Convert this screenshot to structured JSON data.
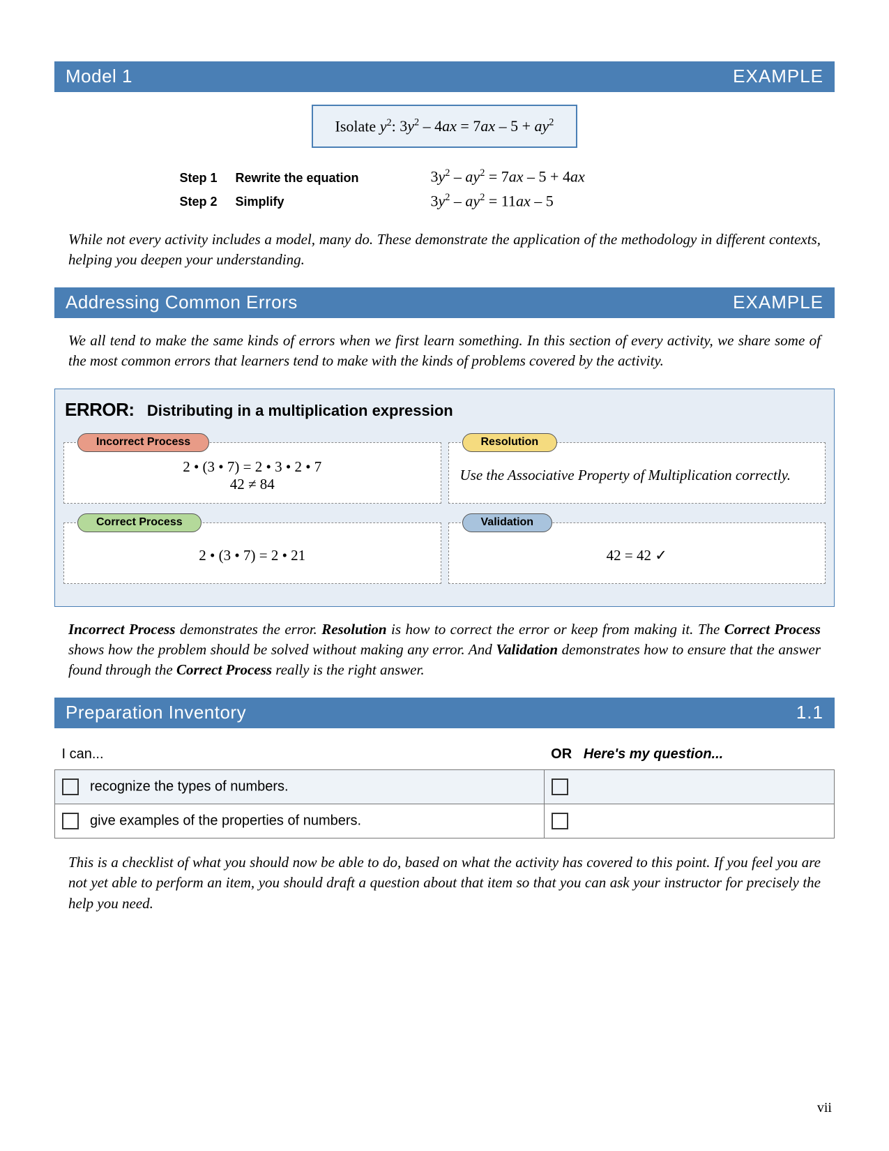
{
  "colors": {
    "bar_bg": "#4a7fb5",
    "panel_bg": "#e6edf5",
    "box_bg": "#eaf1f8",
    "pill_red": "#e89b87",
    "pill_yellow": "#f5db7f",
    "pill_green": "#b4d99a",
    "pill_blue": "#a8c3dd"
  },
  "sections": {
    "model": {
      "title": "Model 1",
      "tag": "EXAMPLE"
    },
    "errors": {
      "title": "Addressing Common Errors",
      "tag": "EXAMPLE"
    },
    "prep": {
      "title": "Preparation Inventory",
      "tag": "1.1"
    }
  },
  "model": {
    "equation_prefix": "Isolate ",
    "equation_var": "y²",
    "equation_sep": ": ",
    "equation_body": "3y² – 4ax = 7ax – 5 + ay²",
    "steps": [
      {
        "num": "Step 1",
        "desc": "Rewrite the equation",
        "math": "3y² – ay² = 7ax – 5 + 4ax"
      },
      {
        "num": "Step 2",
        "desc": "Simplify",
        "math": "3y² – ay² = 11ax – 5"
      }
    ],
    "caption": "While not every activity includes a model, many do. These demonstrate the application of the methodology in different contexts, helping you deepen your understanding."
  },
  "errors": {
    "intro": "We all tend to make the same kinds of errors when we first learn something. In this section of every activity, we share some of the most common errors that learners tend to make with the kinds of problems covered by the activity.",
    "label": "ERROR:",
    "title": "Distributing in a multiplication expression",
    "cells": {
      "incorrect": {
        "pill": "Incorrect Process",
        "line1": "2 • (3 • 7) = 2 • 3 • 2 • 7",
        "line2": "42 ≠ 84"
      },
      "resolution": {
        "pill": "Resolution",
        "text": "Use the Associative Property of Multiplication correctly."
      },
      "correct": {
        "pill": "Correct Process",
        "line1": "2 • (3 • 7) = 2 • 21"
      },
      "validation": {
        "pill": "Validation",
        "line1": "42 = 42 ✓"
      }
    },
    "caption_parts": {
      "p1": "Incorrect Process",
      "p2": " demonstrates the error. ",
      "p3": "Resolution",
      "p4": " is how to correct the error or keep from making it. The ",
      "p5": "Correct Process",
      "p6": " shows how the problem should be solved without making any error. And ",
      "p7": "Validation",
      "p8": " demonstrates how to ensure that the answer found through the ",
      "p9": "Correct Process",
      "p10": " really is the right answer."
    }
  },
  "prep": {
    "left_header": "I can...",
    "right_or": "OR",
    "right_q": "Here's my question...",
    "rows": [
      "recognize the types of numbers.",
      "give examples of the properties of numbers."
    ],
    "caption": "This is a checklist of what you should now be able to do, based on what the activity has covered to this point. If you feel you are not yet able to perform an item, you should draft a question about that item so that you can ask your instructor for precisely the help you need."
  },
  "page_number": "vii"
}
